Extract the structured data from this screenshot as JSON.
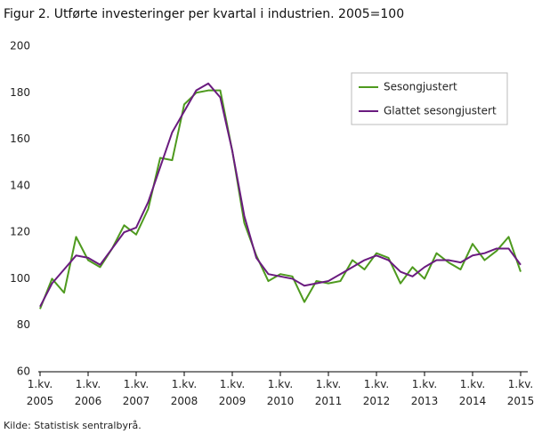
{
  "chart_data": {
    "type": "line",
    "title": "Figur 2. Utførte investeringer per kvartal i industrien. 2005=100",
    "source": "Kilde: Statistisk sentralbyrå.",
    "categories": [
      "1.kv.\n2005",
      null,
      null,
      null,
      "1.kv.\n2006",
      null,
      null,
      null,
      "1.kv.\n2007",
      null,
      null,
      null,
      "1.kv.\n2008",
      null,
      null,
      null,
      "1.kv.\n2009",
      null,
      null,
      null,
      "1.kv.\n2010",
      null,
      null,
      null,
      "1.kv.\n2011",
      null,
      null,
      null,
      "1.kv.\n2012",
      null,
      null,
      null,
      "1.kv.\n2013",
      null,
      null,
      null,
      "1.kv.\n2014",
      null,
      null,
      null,
      "1.kv.\n2015"
    ],
    "series": [
      {
        "name": "Sesongjustert",
        "color": "#4e9a1e",
        "values": [
          87,
          100,
          94,
          118,
          108,
          105,
          113,
          123,
          119,
          130,
          152,
          151,
          175,
          180,
          181,
          181,
          155,
          124,
          110,
          99,
          102,
          101,
          90,
          99,
          98,
          99,
          108,
          104,
          111,
          109,
          98,
          105,
          100,
          111,
          107,
          104,
          115,
          108,
          112,
          118,
          103
        ]
      },
      {
        "name": "Glattet sesongjustert",
        "color": "#6a1b7f",
        "values": [
          88,
          98,
          104,
          110,
          109,
          106,
          113,
          120,
          122,
          133,
          148,
          163,
          172,
          181,
          184,
          178,
          155,
          127,
          109,
          102,
          101,
          100,
          97,
          98,
          99,
          102,
          105,
          108,
          110,
          108,
          103,
          101,
          105,
          108,
          108,
          107,
          110,
          111,
          113,
          113,
          106
        ]
      }
    ],
    "ylim": [
      60,
      200
    ],
    "yticks": [
      60,
      80,
      100,
      120,
      140,
      160,
      180,
      200
    ],
    "legend": "upper-right"
  }
}
